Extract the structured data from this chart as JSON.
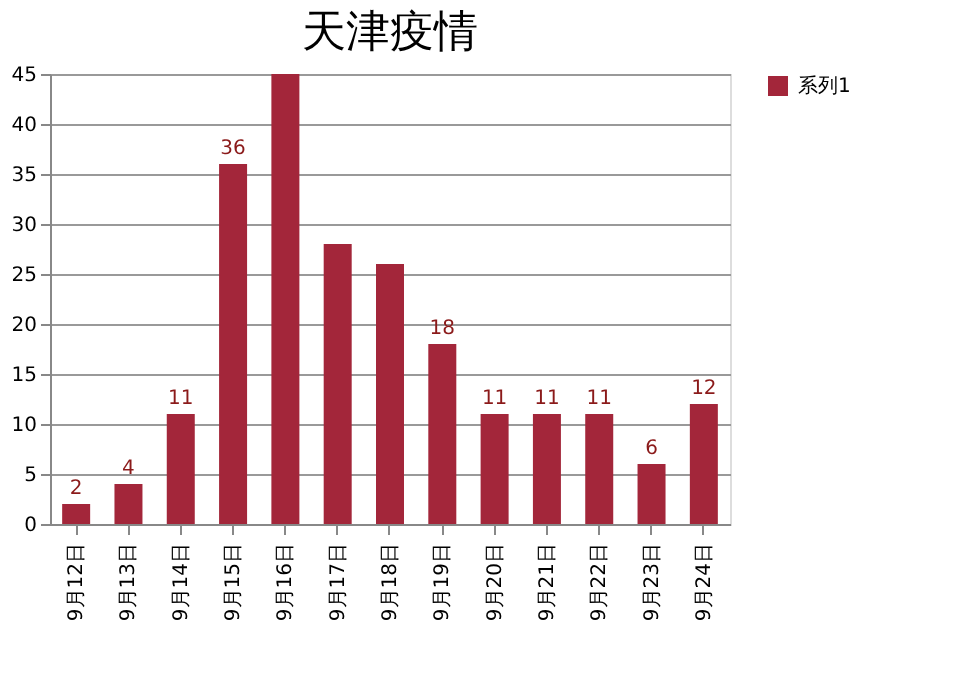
{
  "chart_data": {
    "type": "bar",
    "title": "天津疫情",
    "categories": [
      "9月12日",
      "9月13日",
      "9月14日",
      "9月15日",
      "9月16日",
      "9月17日",
      "9月18日",
      "9月19日",
      "9月20日",
      "9月21日",
      "9月22日",
      "9月23日",
      "9月24日"
    ],
    "series": [
      {
        "name": "系列1",
        "color": "#a3263a",
        "values": [
          2,
          4,
          11,
          36,
          45,
          28,
          26,
          18,
          11,
          11,
          11,
          6,
          12
        ]
      }
    ],
    "value_labels": [
      "2",
      "4",
      "11",
      "36",
      null,
      null,
      null,
      "18",
      "11",
      "11",
      "11",
      "6",
      "12"
    ],
    "ylim": [
      0,
      45
    ],
    "yticks": [
      0,
      5,
      10,
      15,
      20,
      25,
      30,
      35,
      40,
      45
    ],
    "grid": "y",
    "legend": "right"
  }
}
